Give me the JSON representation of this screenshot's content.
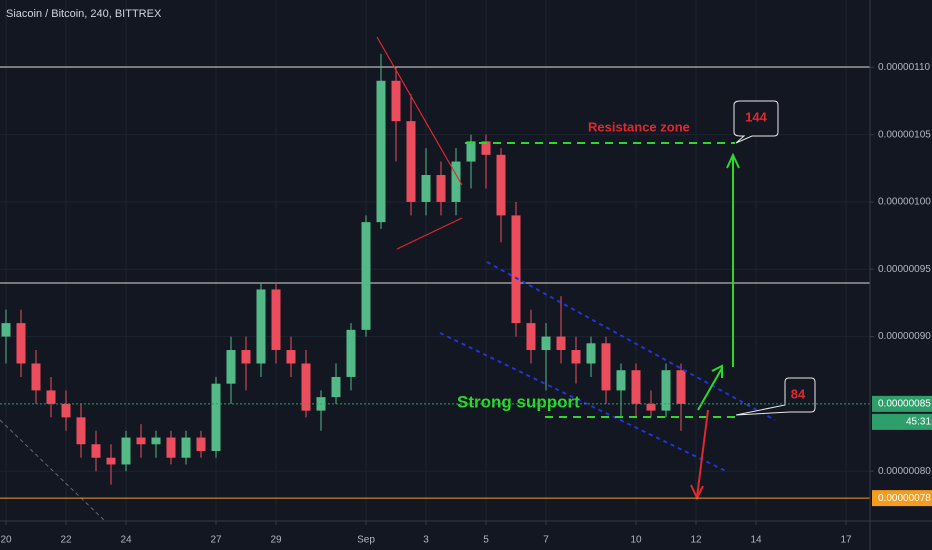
{
  "chart_data": {
    "type": "candlestick",
    "title": "Siacoin / Bitcoin, 240, BITTREX",
    "up_color": "#53b987",
    "down_color": "#eb4d5c",
    "grid": true,
    "x": [
      0,
      0.5,
      1,
      1.5,
      2,
      2.5,
      3,
      3.5,
      4,
      4.5,
      5,
      5.5,
      6,
      6.5,
      7,
      7.5,
      8,
      8.5,
      9,
      9.5,
      10,
      10.5,
      11,
      11.5,
      12,
      12.5,
      13,
      13.5,
      14,
      14.5,
      15,
      15.5,
      16,
      16.5,
      17,
      17.5,
      18,
      18.5,
      19,
      19.5,
      20,
      20.5,
      21,
      21.5,
      22,
      22.5
    ],
    "open": [
      9e-07,
      9.1e-07,
      8.8e-07,
      8.6e-07,
      8.5e-07,
      8.4e-07,
      8.2e-07,
      8.1e-07,
      8.05e-07,
      8.25e-07,
      8.2e-07,
      8.25e-07,
      8.1e-07,
      8.25e-07,
      8.15e-07,
      8.65e-07,
      8.9e-07,
      8.8e-07,
      9.35e-07,
      8.9e-07,
      8.8e-07,
      8.45e-07,
      8.55e-07,
      8.7e-07,
      9.05e-07,
      9.85e-07,
      1.09e-06,
      1.06e-06,
      1e-06,
      1.02e-06,
      1e-06,
      1.03e-06,
      1.045e-06,
      1.035e-06,
      9.9e-07,
      9.1e-07,
      8.9e-07,
      9e-07,
      8.9e-07,
      8.8e-07,
      8.95e-07,
      8.6e-07,
      8.75e-07,
      8.5e-07,
      8.45e-07,
      8.75e-07
    ],
    "high": [
      9.2e-07,
      9.2e-07,
      8.9e-07,
      8.7e-07,
      8.6e-07,
      8.5e-07,
      8.3e-07,
      8.2e-07,
      8.3e-07,
      8.35e-07,
      8.3e-07,
      8.3e-07,
      8.3e-07,
      8.3e-07,
      8.7e-07,
      9e-07,
      9e-07,
      9.4e-07,
      9.4e-07,
      9e-07,
      8.9e-07,
      8.6e-07,
      8.8e-07,
      9.1e-07,
      9.9e-07,
      1.11e-06,
      1.1e-06,
      1.08e-06,
      1.04e-06,
      1.03e-06,
      1.04e-06,
      1.05e-06,
      1.05e-06,
      1.04e-06,
      1e-06,
      9.2e-07,
      9.1e-07,
      9.3e-07,
      9e-07,
      9e-07,
      9e-07,
      8.8e-07,
      8.8e-07,
      8.6e-07,
      8.8e-07,
      8.8e-07
    ],
    "low": [
      8.8e-07,
      8.7e-07,
      8.5e-07,
      8.4e-07,
      8.3e-07,
      8.1e-07,
      8e-07,
      7.9e-07,
      8e-07,
      8.1e-07,
      8.1e-07,
      8.05e-07,
      8.05e-07,
      8.1e-07,
      8.1e-07,
      8.5e-07,
      8.6e-07,
      8.7e-07,
      8.8e-07,
      8.7e-07,
      8.4e-07,
      8.3e-07,
      8.5e-07,
      8.6e-07,
      9e-07,
      9.8e-07,
      1.03e-06,
      9.9e-07,
      9.9e-07,
      9.9e-07,
      9.9e-07,
      1.01e-06,
      1.01e-06,
      9.7e-07,
      9e-07,
      8.8e-07,
      8.6e-07,
      8.8e-07,
      8.65e-07,
      8.7e-07,
      8.5e-07,
      8.4e-07,
      8.4e-07,
      8.4e-07,
      8.4e-07,
      8.3e-07
    ],
    "close": [
      9.1e-07,
      8.8e-07,
      8.6e-07,
      8.5e-07,
      8.4e-07,
      8.2e-07,
      8.1e-07,
      8.05e-07,
      8.25e-07,
      8.2e-07,
      8.25e-07,
      8.1e-07,
      8.25e-07,
      8.15e-07,
      8.65e-07,
      8.9e-07,
      8.8e-07,
      9.35e-07,
      8.9e-07,
      8.8e-07,
      8.45e-07,
      8.55e-07,
      8.7e-07,
      9.05e-07,
      9.85e-07,
      1.09e-06,
      1.06e-06,
      1e-06,
      1.02e-06,
      1e-06,
      1.03e-06,
      1.045e-06,
      1.035e-06,
      9.9e-07,
      9.1e-07,
      8.9e-07,
      9e-07,
      8.9e-07,
      8.8e-07,
      8.95e-07,
      8.6e-07,
      8.75e-07,
      8.5e-07,
      8.45e-07,
      8.75e-07,
      8.5e-07
    ],
    "xlim": [
      -0.2,
      28.8
    ],
    "xticks": [
      {
        "value": 0,
        "label": "20"
      },
      {
        "value": 2,
        "label": "22"
      },
      {
        "value": 4,
        "label": "24"
      },
      {
        "value": 7,
        "label": "27"
      },
      {
        "value": 9,
        "label": "29"
      },
      {
        "value": 12,
        "label": "Sep"
      },
      {
        "value": 14,
        "label": "3"
      },
      {
        "value": 16,
        "label": "5"
      },
      {
        "value": 18,
        "label": "7"
      },
      {
        "value": 21,
        "label": "10"
      },
      {
        "value": 23,
        "label": "12"
      },
      {
        "value": 25,
        "label": "14"
      },
      {
        "value": 28,
        "label": "17"
      }
    ],
    "ylim": [
      7.63e-07,
      1.15e-06
    ],
    "yticks": [
      {
        "value": 8e-07,
        "label": "0.00000080"
      },
      {
        "value": 9e-07,
        "label": "0.00000090"
      },
      {
        "value": 9.5e-07,
        "label": "0.00000095"
      },
      {
        "value": 1e-06,
        "label": "0.00000100"
      },
      {
        "value": 1.05e-06,
        "label": "0.00000105"
      },
      {
        "value": 1.1e-06,
        "label": "0.00000110"
      }
    ],
    "price_labels": [
      {
        "value": 8.5e-07,
        "label": "0.00000085",
        "color": "#2e9e6b"
      },
      {
        "value": 7.8e-07,
        "label": "0.00000078",
        "color": "#f59b1d"
      }
    ],
    "countdown": "45:31",
    "annotations": {
      "resistance": "Resistance zone",
      "support": "Strong support",
      "target_up": "144",
      "target_down": "84"
    }
  }
}
